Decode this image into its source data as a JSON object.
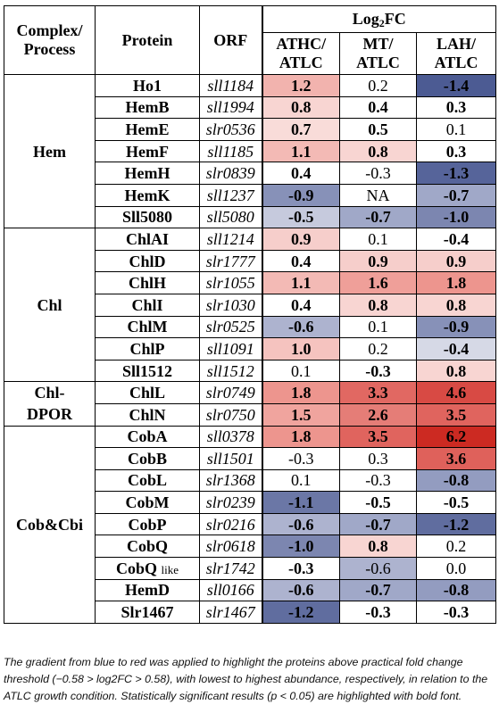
{
  "header": {
    "complex": "Complex/\nProcess",
    "protein": "Protein",
    "orf": "ORF",
    "log_prefix": "Log",
    "log_sub": "2",
    "log_suffix": "FC",
    "col1": "ATHC/\nATLC",
    "col2": "MT/\nATLC",
    "col3": "LAH/\nATLC"
  },
  "groups": [
    {
      "name": "Hem",
      "rows": [
        {
          "protein": "Ho1",
          "orf": "sll1184",
          "v": [
            {
              "t": "1.2",
              "b": true,
              "c": "#f2b3ae"
            },
            {
              "t": "0.2",
              "b": false,
              "c": "#ffffff"
            },
            {
              "t": "-1.4",
              "b": true,
              "c": "#4c5b93"
            }
          ]
        },
        {
          "protein": "HemB",
          "orf": "sll1994",
          "v": [
            {
              "t": "0.8",
              "b": true,
              "c": "#f8d5d2"
            },
            {
              "t": "0.4",
              "b": true,
              "c": "#ffffff"
            },
            {
              "t": "0.3",
              "b": true,
              "c": "#ffffff"
            }
          ]
        },
        {
          "protein": "HemE",
          "orf": "slr0536",
          "v": [
            {
              "t": "0.7",
              "b": true,
              "c": "#f9dcd9"
            },
            {
              "t": "0.5",
              "b": true,
              "c": "#ffffff"
            },
            {
              "t": "0.1",
              "b": false,
              "c": "#ffffff"
            }
          ]
        },
        {
          "protein": "HemF",
          "orf": "sll1185",
          "v": [
            {
              "t": "1.1",
              "b": true,
              "c": "#f3bab5"
            },
            {
              "t": "0.8",
              "b": true,
              "c": "#f8d5d2"
            },
            {
              "t": "0.3",
              "b": true,
              "c": "#ffffff"
            }
          ]
        },
        {
          "protein": "HemH",
          "orf": "slr0839",
          "v": [
            {
              "t": "0.4",
              "b": true,
              "c": "#ffffff"
            },
            {
              "t": "-0.3",
              "b": false,
              "c": "#ffffff"
            },
            {
              "t": "-1.3",
              "b": true,
              "c": "#56649a"
            }
          ]
        },
        {
          "protein": "HemK",
          "orf": "sll1237",
          "v": [
            {
              "t": "-0.9",
              "b": true,
              "c": "#8791b8"
            },
            {
              "t": "NA",
              "b": false,
              "c": "#ffffff"
            },
            {
              "t": "-0.7",
              "b": true,
              "c": "#a0a8c8"
            }
          ]
        },
        {
          "protein": "Sll5080",
          "orf": "sll5080",
          "v": [
            {
              "t": "-0.5",
              "b": true,
              "c": "#c6cadd"
            },
            {
              "t": "-0.7",
              "b": true,
              "c": "#a0a8c8"
            },
            {
              "t": "-1.0",
              "b": true,
              "c": "#7c86b0"
            }
          ]
        }
      ]
    },
    {
      "name": "Chl",
      "rows": [
        {
          "protein": "ChlAI",
          "orf": "sll1214",
          "v": [
            {
              "t": "0.9",
              "b": true,
              "c": "#f6cecb"
            },
            {
              "t": "0.1",
              "b": false,
              "c": "#ffffff"
            },
            {
              "t": "-0.4",
              "b": true,
              "c": "#ffffff"
            }
          ]
        },
        {
          "protein": "ChlD",
          "orf": "slr1777",
          "v": [
            {
              "t": "0.4",
              "b": true,
              "c": "#ffffff"
            },
            {
              "t": "0.9",
              "b": true,
              "c": "#f6cecb"
            },
            {
              "t": "0.9",
              "b": true,
              "c": "#f6cecb"
            }
          ]
        },
        {
          "protein": "ChlH",
          "orf": "slr1055",
          "v": [
            {
              "t": "1.1",
              "b": true,
              "c": "#f3bab5"
            },
            {
              "t": "1.6",
              "b": true,
              "c": "#ef9f99"
            },
            {
              "t": "1.8",
              "b": true,
              "c": "#ed958e"
            }
          ]
        },
        {
          "protein": "ChlI",
          "orf": "slr1030",
          "v": [
            {
              "t": "0.4",
              "b": true,
              "c": "#ffffff"
            },
            {
              "t": "0.8",
              "b": true,
              "c": "#f8d5d2"
            },
            {
              "t": "0.8",
              "b": true,
              "c": "#f8d5d2"
            }
          ]
        },
        {
          "protein": "ChlM",
          "orf": "slr0525",
          "v": [
            {
              "t": "-0.6",
              "b": true,
              "c": "#adb3cf"
            },
            {
              "t": "0.1",
              "b": false,
              "c": "#ffffff"
            },
            {
              "t": "-0.9",
              "b": true,
              "c": "#8791b8"
            }
          ]
        },
        {
          "protein": "ChlP",
          "orf": "sll1091",
          "v": [
            {
              "t": "1.0",
              "b": true,
              "c": "#f5c3bf"
            },
            {
              "t": "0.2",
              "b": false,
              "c": "#ffffff"
            },
            {
              "t": "-0.4",
              "b": true,
              "c": "#d6d9e6"
            }
          ]
        },
        {
          "protein": "Sll1512",
          "orf": "sll1512",
          "v": [
            {
              "t": "0.1",
              "b": false,
              "c": "#ffffff"
            },
            {
              "t": "-0.3",
              "b": true,
              "c": "#ffffff"
            },
            {
              "t": "0.8",
              "b": true,
              "c": "#f8d5d2"
            }
          ]
        }
      ]
    },
    {
      "name": "Chl-\nDPOR",
      "rows": [
        {
          "protein": "ChlL",
          "orf": "slr0749",
          "v": [
            {
              "t": "1.8",
              "b": true,
              "c": "#ed958e"
            },
            {
              "t": "3.3",
              "b": true,
              "c": "#e16862"
            },
            {
              "t": "4.6",
              "b": true,
              "c": "#d84a44"
            }
          ]
        },
        {
          "protein": "ChlN",
          "orf": "slr0750",
          "v": [
            {
              "t": "1.5",
              "b": true,
              "c": "#f0a49e"
            },
            {
              "t": "2.6",
              "b": true,
              "c": "#e57d77"
            },
            {
              "t": "3.5",
              "b": true,
              "c": "#e0645e"
            }
          ]
        }
      ]
    },
    {
      "name": "Cob&Cbi",
      "rows": [
        {
          "protein": "CobA",
          "orf": "sll0378",
          "v": [
            {
              "t": "1.8",
              "b": true,
              "c": "#ed958e"
            },
            {
              "t": "3.5",
              "b": true,
              "c": "#e0645e"
            },
            {
              "t": "6.2",
              "b": true,
              "c": "#cc2a22"
            }
          ]
        },
        {
          "protein": "CobB",
          "orf": "sll1501",
          "v": [
            {
              "t": "-0.3",
              "b": false,
              "c": "#ffffff"
            },
            {
              "t": "0.3",
              "b": false,
              "c": "#ffffff"
            },
            {
              "t": "3.6",
              "b": true,
              "c": "#df615b"
            }
          ]
        },
        {
          "protein": "CobL",
          "orf": "slr1368",
          "v": [
            {
              "t": "0.1",
              "b": false,
              "c": "#ffffff"
            },
            {
              "t": "-0.3",
              "b": false,
              "c": "#ffffff"
            },
            {
              "t": "-0.8",
              "b": true,
              "c": "#939cc0"
            }
          ]
        },
        {
          "protein": "CobM",
          "orf": "slr0239",
          "v": [
            {
              "t": "-1.1",
              "b": true,
              "c": "#6b77a6"
            },
            {
              "t": "-0.5",
              "b": true,
              "c": "#ffffff"
            },
            {
              "t": "-0.5",
              "b": true,
              "c": "#ffffff"
            }
          ]
        },
        {
          "protein": "CobP",
          "orf": "slr0216",
          "v": [
            {
              "t": "-0.6",
              "b": true,
              "c": "#adb3cf"
            },
            {
              "t": "-0.7",
              "b": true,
              "c": "#a0a8c8"
            },
            {
              "t": "-1.2",
              "b": true,
              "c": "#606d9f"
            }
          ]
        },
        {
          "protein": "CobQ",
          "orf": "slr0618",
          "v": [
            {
              "t": "-1.0",
              "b": true,
              "c": "#7c86b0"
            },
            {
              "t": "0.8",
              "b": true,
              "c": "#f8d5d2"
            },
            {
              "t": "0.2",
              "b": false,
              "c": "#ffffff"
            }
          ]
        },
        {
          "protein": "CobQ",
          "protein_suffix": "like",
          "orf": "slr1742",
          "v": [
            {
              "t": "-0.3",
              "b": true,
              "c": "#ffffff"
            },
            {
              "t": "-0.6",
              "b": false,
              "c": "#adb3cf"
            },
            {
              "t": "0.0",
              "b": false,
              "c": "#ffffff"
            }
          ]
        },
        {
          "protein": "HemD",
          "orf": "sll0166",
          "v": [
            {
              "t": "-0.6",
              "b": true,
              "c": "#adb3cf"
            },
            {
              "t": "-0.7",
              "b": true,
              "c": "#a0a8c8"
            },
            {
              "t": "-0.8",
              "b": true,
              "c": "#939cc0"
            }
          ]
        },
        {
          "protein": "Slr1467",
          "orf": "slr1467",
          "v": [
            {
              "t": "-1.2",
              "b": true,
              "c": "#606d9f"
            },
            {
              "t": "-0.3",
              "b": true,
              "c": "#ffffff"
            },
            {
              "t": "-0.3",
              "b": true,
              "c": "#ffffff"
            }
          ]
        }
      ]
    }
  ],
  "caption": "The gradient from blue to red was applied to highlight the proteins above practical fold change threshold (−0.58 > log2FC > 0.58), with lowest to highest abundance, respectively, in relation to the ATLC growth condition. Statistically significant results (p < 0.05) are highlighted with bold font."
}
